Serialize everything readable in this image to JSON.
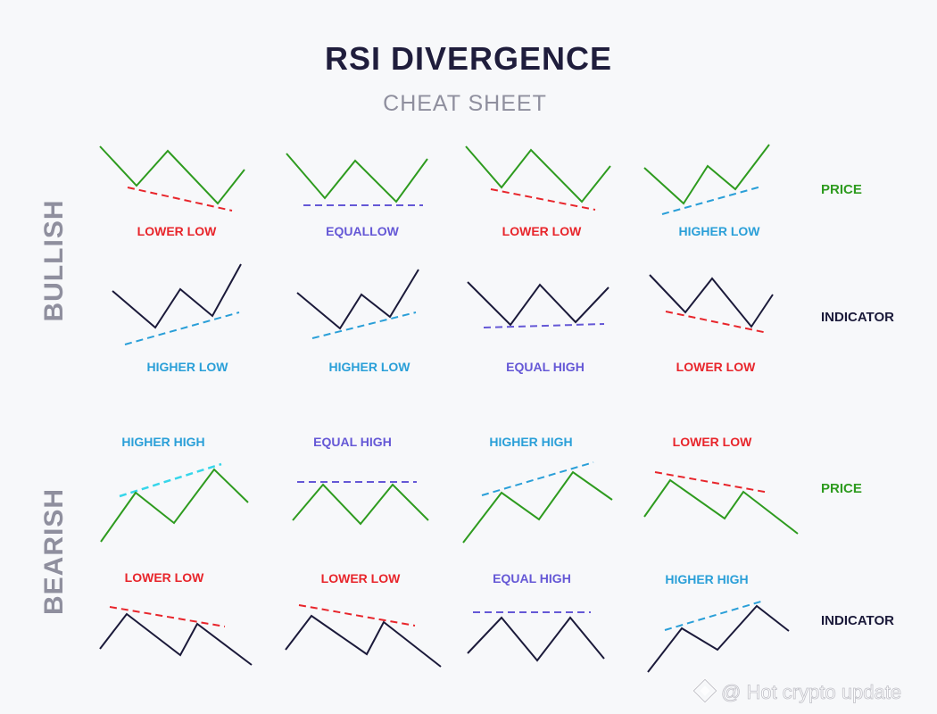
{
  "header": {
    "title": "RSI DIVERGENCE",
    "subtitle": "CHEAT SHEET"
  },
  "colors": {
    "price": "#2e9b1f",
    "indicator": "#1b1a3a",
    "red": "#e8252b",
    "blue": "#2a9fd8",
    "purple": "#6558d6",
    "cyan": "#36d6ea",
    "section": "#8f8f9e",
    "title": "#1f1d3c",
    "subtitle": "#8f8f9e"
  },
  "sections": {
    "bullish": {
      "label": "BULLISH",
      "price_label": "PRICE",
      "indicator_label": "INDICATOR"
    },
    "bearish": {
      "label": "BEARISH",
      "price_label": "PRICE",
      "indicator_label": "INDICATOR"
    }
  },
  "bullish_price": [
    {
      "label": "LOWER LOW",
      "trend": "lower"
    },
    {
      "label": "EQUALLOW",
      "trend": "equal"
    },
    {
      "label": "LOWER LOW",
      "trend": "lower"
    },
    {
      "label": "HIGHER LOW",
      "trend": "higher"
    }
  ],
  "bullish_indicator": [
    {
      "label": "HIGHER LOW",
      "trend": "higher"
    },
    {
      "label": "HIGHER LOW",
      "trend": "higher"
    },
    {
      "label": "EQUAL HIGH",
      "trend": "equal"
    },
    {
      "label": "LOWER LOW",
      "trend": "lower"
    }
  ],
  "bearish_price": [
    {
      "label": "HIGHER HIGH",
      "trend": "higher"
    },
    {
      "label": "EQUAL HIGH",
      "trend": "equal"
    },
    {
      "label": "HIGHER HIGH",
      "trend": "higher"
    },
    {
      "label": "LOWER LOW",
      "trend": "lower"
    }
  ],
  "bearish_indicator": [
    {
      "label": "LOWER LOW",
      "trend": "lower"
    },
    {
      "label": "LOWER LOW",
      "trend": "lower"
    },
    {
      "label": "EQUAL HIGH",
      "trend": "equal"
    },
    {
      "label": "HIGHER HIGH",
      "trend": "higher"
    }
  ],
  "watermark": "@ Hot crypto update"
}
